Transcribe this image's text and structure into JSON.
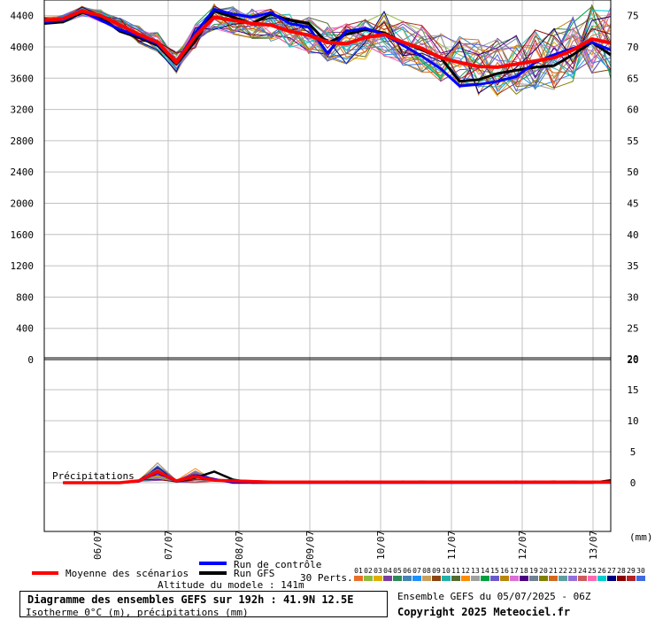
{
  "chart_data": {
    "type": "line",
    "title": "Diagramme des ensembles GEFS sur 192h : 41.9N 12.5E",
    "subtitle": "Isotherme 0°C (m), précipitations (mm)",
    "x_dates": [
      "06/07",
      "07/07",
      "08/07",
      "09/07",
      "10/07",
      "11/07",
      "12/07",
      "13/07"
    ],
    "top_panel": {
      "left_ticks": [
        0,
        400,
        800,
        1200,
        1600,
        2000,
        2400,
        2800,
        3200,
        3600,
        4000,
        4400
      ],
      "right_ticks": [
        20,
        25,
        30,
        35,
        40,
        45,
        50,
        55,
        60,
        65,
        70,
        75
      ],
      "ylim": [
        0,
        4600
      ],
      "x_steps": 31,
      "mean": [
        4340,
        4360,
        4460,
        4400,
        4280,
        4160,
        4060,
        3800,
        4140,
        4380,
        4340,
        4300,
        4280,
        4200,
        4150,
        4060,
        4040,
        4120,
        4160,
        4060,
        3980,
        3860,
        3800,
        3750,
        3740,
        3780,
        3820,
        3860,
        3960,
        4100,
        4050
      ],
      "control": [
        4320,
        4340,
        4460,
        4340,
        4220,
        4140,
        4040,
        3800,
        4180,
        4480,
        4420,
        4380,
        4440,
        4300,
        4250,
        3920,
        4200,
        4240,
        4160,
        4020,
        3880,
        3720,
        3500,
        3520,
        3560,
        3620,
        3800,
        3900,
        3980,
        4060,
        3960
      ],
      "gfs": [
        4300,
        4320,
        4440,
        4380,
        4200,
        4120,
        4020,
        3780,
        4080,
        4460,
        4380,
        4300,
        4420,
        4340,
        4300,
        4050,
        4160,
        4220,
        4180,
        4060,
        3960,
        3860,
        3560,
        3580,
        3660,
        3700,
        3740,
        3760,
        3900,
        4060,
        3900
      ]
    },
    "bottom_panel": {
      "label": "Précipitations",
      "right_ticks": [
        20,
        15,
        10,
        5,
        0
      ],
      "unit": "(mm)",
      "mean": [
        0,
        0,
        0,
        0,
        0,
        0.3,
        1.8,
        0.3,
        1.0,
        0.4,
        0.3,
        0.2,
        0.1,
        0.1,
        0.1,
        0.1,
        0.1,
        0.1,
        0.1,
        0.1,
        0.1,
        0.1,
        0.1,
        0.1,
        0.1,
        0.1,
        0.1,
        0.1,
        0.1,
        0.1,
        0.1
      ],
      "control": [
        0,
        0,
        0,
        0,
        0,
        0.2,
        1.6,
        0.2,
        1.2,
        0.6,
        0,
        0,
        0,
        0,
        0,
        0,
        0,
        0,
        0,
        0,
        0,
        0,
        0,
        0,
        0,
        0,
        0,
        0,
        0,
        0,
        0
      ],
      "gfs": [
        0,
        0,
        0,
        0,
        0,
        0.3,
        1.9,
        0.2,
        0.8,
        1.8,
        0.5,
        0,
        0,
        0,
        0,
        0,
        0,
        0,
        0,
        0,
        0,
        0,
        0,
        0,
        0,
        0,
        0,
        0,
        0,
        0,
        0.4
      ]
    },
    "legend": {
      "mean_label": "Moyenne des scénarios",
      "control_label": "Run de contrôle",
      "gfs_label": "Run GFS",
      "perts_label": "30 Perts.",
      "perts_codes": [
        "01",
        "02",
        "03",
        "04",
        "05",
        "06",
        "07",
        "08",
        "09",
        "10",
        "11",
        "12",
        "13",
        "14",
        "15",
        "16",
        "17",
        "18",
        "19",
        "20",
        "21",
        "22",
        "23",
        "24",
        "25",
        "26",
        "27",
        "28",
        "29",
        "30"
      ]
    },
    "colors": {
      "mean": "#ff0000",
      "control": "#0000ff",
      "gfs": "#000000",
      "grid": "#c0c0c0",
      "members": [
        "#e8702a",
        "#8fbc3f",
        "#e0b000",
        "#7b3fa0",
        "#2e8b57",
        "#4682b4",
        "#1e90ff",
        "#c8a060",
        "#8b4513",
        "#20b2aa",
        "#556b2f",
        "#ff8c00",
        "#a0a0a0",
        "#00a040",
        "#6a5acd",
        "#b8860b",
        "#da70d6",
        "#4b0082",
        "#708090",
        "#808000",
        "#d2691e",
        "#5f9ea0",
        "#9370db",
        "#cd5c5c",
        "#ff69b4",
        "#00ced1",
        "#000080",
        "#8b0000",
        "#b22222",
        "#4169e1"
      ]
    }
  },
  "footer": {
    "altitude": "Altitude du modele : 141m",
    "ensemble_note": "Ensemble GEFS du 05/07/2025 - 06Z",
    "copyright": "Copyright 2025 Meteociel.fr"
  }
}
